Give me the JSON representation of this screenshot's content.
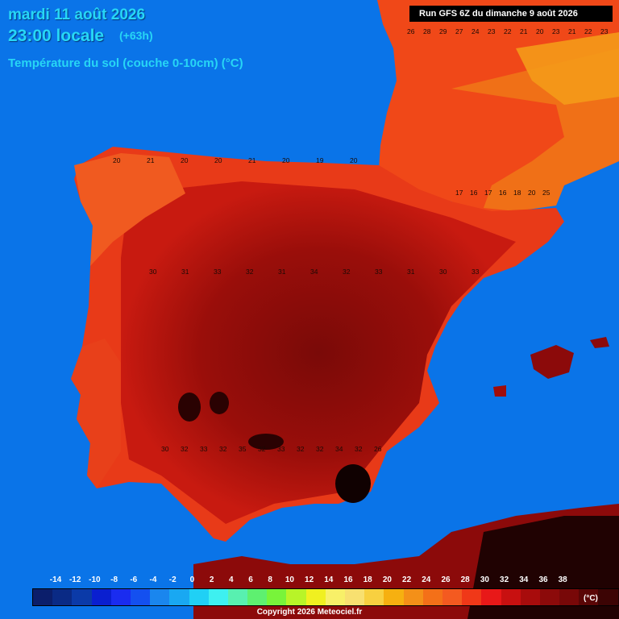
{
  "header": {
    "date": "mardi 11 août 2026",
    "time": "23:00 locale",
    "offset": "(+63h)",
    "parameter": "Température du sol (couche 0-10cm) (°C)",
    "run": "Run GFS 6Z du dimanche 9 août 2026"
  },
  "legend": {
    "ticks": [
      "-14",
      "-12",
      "-10",
      "-8",
      "-6",
      "-4",
      "-2",
      "0",
      "2",
      "4",
      "6",
      "8",
      "10",
      "12",
      "14",
      "16",
      "18",
      "20",
      "22",
      "24",
      "26",
      "28",
      "30",
      "32",
      "34",
      "36",
      "38"
    ],
    "colors": [
      "#0b1e6b",
      "#0a2a85",
      "#0b3aa8",
      "#0a1fd0",
      "#1a2cf0",
      "#1450f0",
      "#1a86ee",
      "#19a8f2",
      "#20d0f5",
      "#3ef0f0",
      "#58f0b0",
      "#5ef070",
      "#78f43a",
      "#b8f428",
      "#f0f020",
      "#f8f068",
      "#f8e070",
      "#f8d040",
      "#f6b010",
      "#f49018",
      "#f47018",
      "#f45a20",
      "#f03818",
      "#e81818",
      "#c81010",
      "#a80c0c",
      "#8c0a0a",
      "#780808",
      "#5a0606",
      "#3c0404",
      "#200202"
    ],
    "unit": "(°C)"
  },
  "copyright": "Copyright 2026 Meteociel.fr",
  "map": {
    "sea_color": "#0a74e8",
    "values_shown": true,
    "region_labels": [
      {
        "row": "north-coast",
        "values": [
          "20",
          "21",
          "20",
          "20",
          "21",
          "20",
          "19",
          "20"
        ]
      },
      {
        "row": "france-sw",
        "values": [
          "26",
          "28",
          "29",
          "27",
          "24",
          "23",
          "22",
          "21",
          "20",
          "23",
          "21",
          "22",
          "23"
        ]
      },
      {
        "row": "central-iberia",
        "values": [
          "30",
          "31",
          "33",
          "32",
          "31",
          "34",
          "32",
          "33",
          "31",
          "30",
          "33"
        ]
      },
      {
        "row": "south-iberia",
        "values": [
          "30",
          "32",
          "33",
          "32",
          "35",
          "32",
          "33",
          "32",
          "32",
          "34",
          "32",
          "26"
        ]
      },
      {
        "row": "pyrenees",
        "values": [
          "17",
          "16",
          "17",
          "16",
          "18",
          "20",
          "25"
        ]
      }
    ]
  }
}
